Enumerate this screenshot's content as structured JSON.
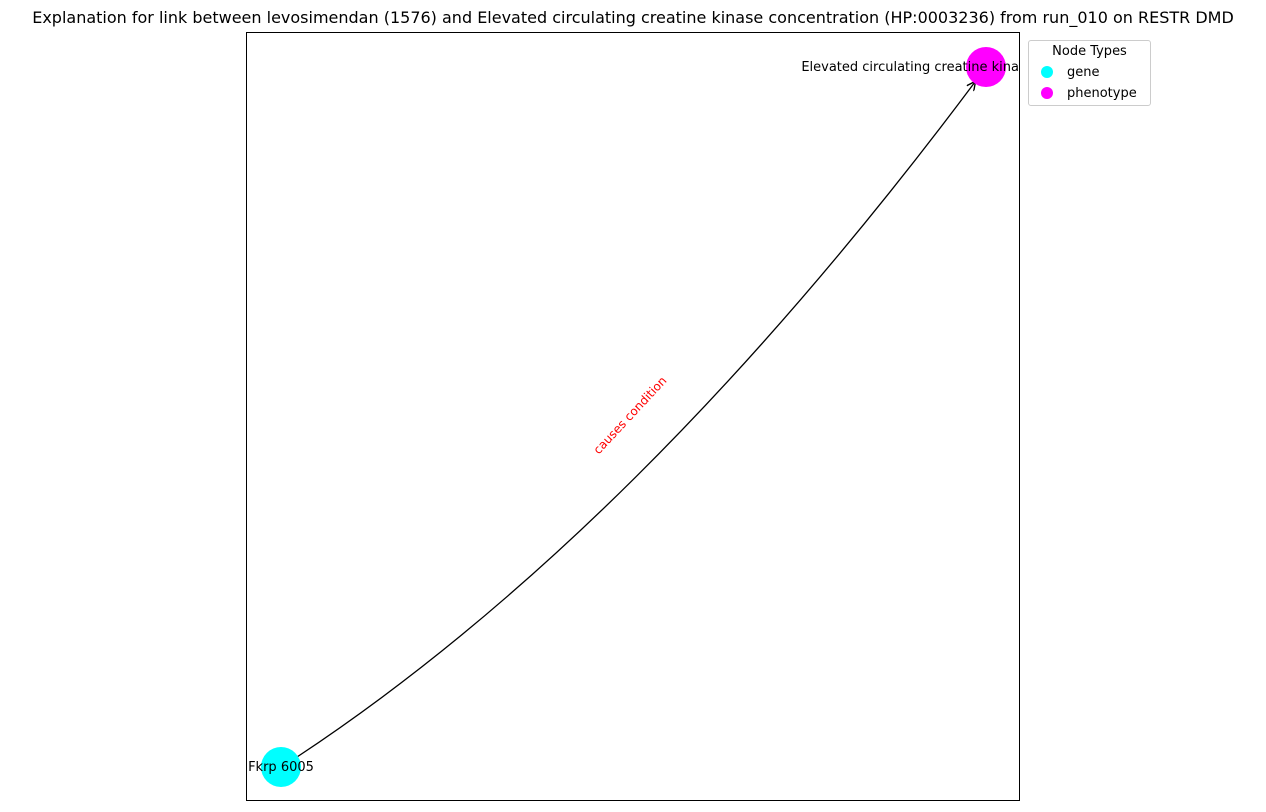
{
  "title": "Explanation for link between levosimendan (1576) and Elevated circulating creatine kinase concentration (HP:0003236) from run_010 on RESTR DMD",
  "colors": {
    "gene": "#00ffff",
    "phenotype": "#ff00ff",
    "edge": "#000000",
    "edge_label": "#ff0000"
  },
  "nodes": [
    {
      "id": "fkrp",
      "label": "Fkrp 6005",
      "type": "gene"
    },
    {
      "id": "hp",
      "label": "Elevated circulating creatine kina",
      "type": "phenotype"
    }
  ],
  "edges": [
    {
      "source": "fkrp",
      "target": "hp",
      "label": "causes condition"
    }
  ],
  "legend": {
    "title": "Node Types",
    "items": [
      {
        "label": "gene",
        "type": "gene"
      },
      {
        "label": "phenotype",
        "type": "phenotype"
      }
    ]
  }
}
